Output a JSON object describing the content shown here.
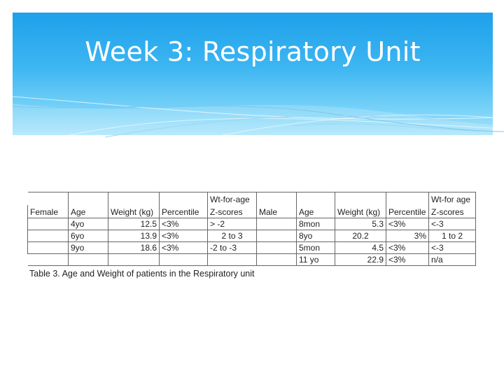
{
  "slide": {
    "title": "Week 3: Respiratory Unit"
  },
  "table": {
    "header_top": {
      "female_wt_label": "Wt-for-age",
      "male_wt_label": "Wt-for age"
    },
    "female_header": [
      "Female",
      "Age",
      "Weight (kg)",
      "Percentile",
      "Z-scores"
    ],
    "male_header": [
      "Male",
      "Age",
      "Weight (kg)",
      "Percentile",
      "Z-scores"
    ],
    "rows": [
      {
        "f_age": "4yo",
        "f_weight": "12.5",
        "f_pct": "<3%",
        "f_z": "> -2",
        "m_age": "8mon",
        "m_weight": "5.3",
        "m_pct": "<3%",
        "m_z": "<-3"
      },
      {
        "f_age": "6yo",
        "f_weight": "13.9",
        "f_pct": "<3%",
        "f_z": "2 to  3",
        "m_age": "8yo",
        "m_weight": "20.2",
        "m_pct": "3%",
        "m_z": "1 to  2"
      },
      {
        "f_age": "9yo",
        "f_weight": "18.6",
        "f_pct": "<3%",
        "f_z": "-2 to -3",
        "m_age": "5mon",
        "m_weight": "4.5",
        "m_pct": "<3%",
        "m_z": "<-3"
      },
      {
        "m_age": "11 yo",
        "m_weight": "22.9",
        "m_pct": "<3%",
        "m_z": "n/a"
      }
    ],
    "caption": "Table 3. Age and Weight of patients in the Respiratory unit"
  },
  "colors": {
    "header_top": "#1ea0ea",
    "header_bottom": "#a9e4fb",
    "title_text": "#ffffff"
  }
}
